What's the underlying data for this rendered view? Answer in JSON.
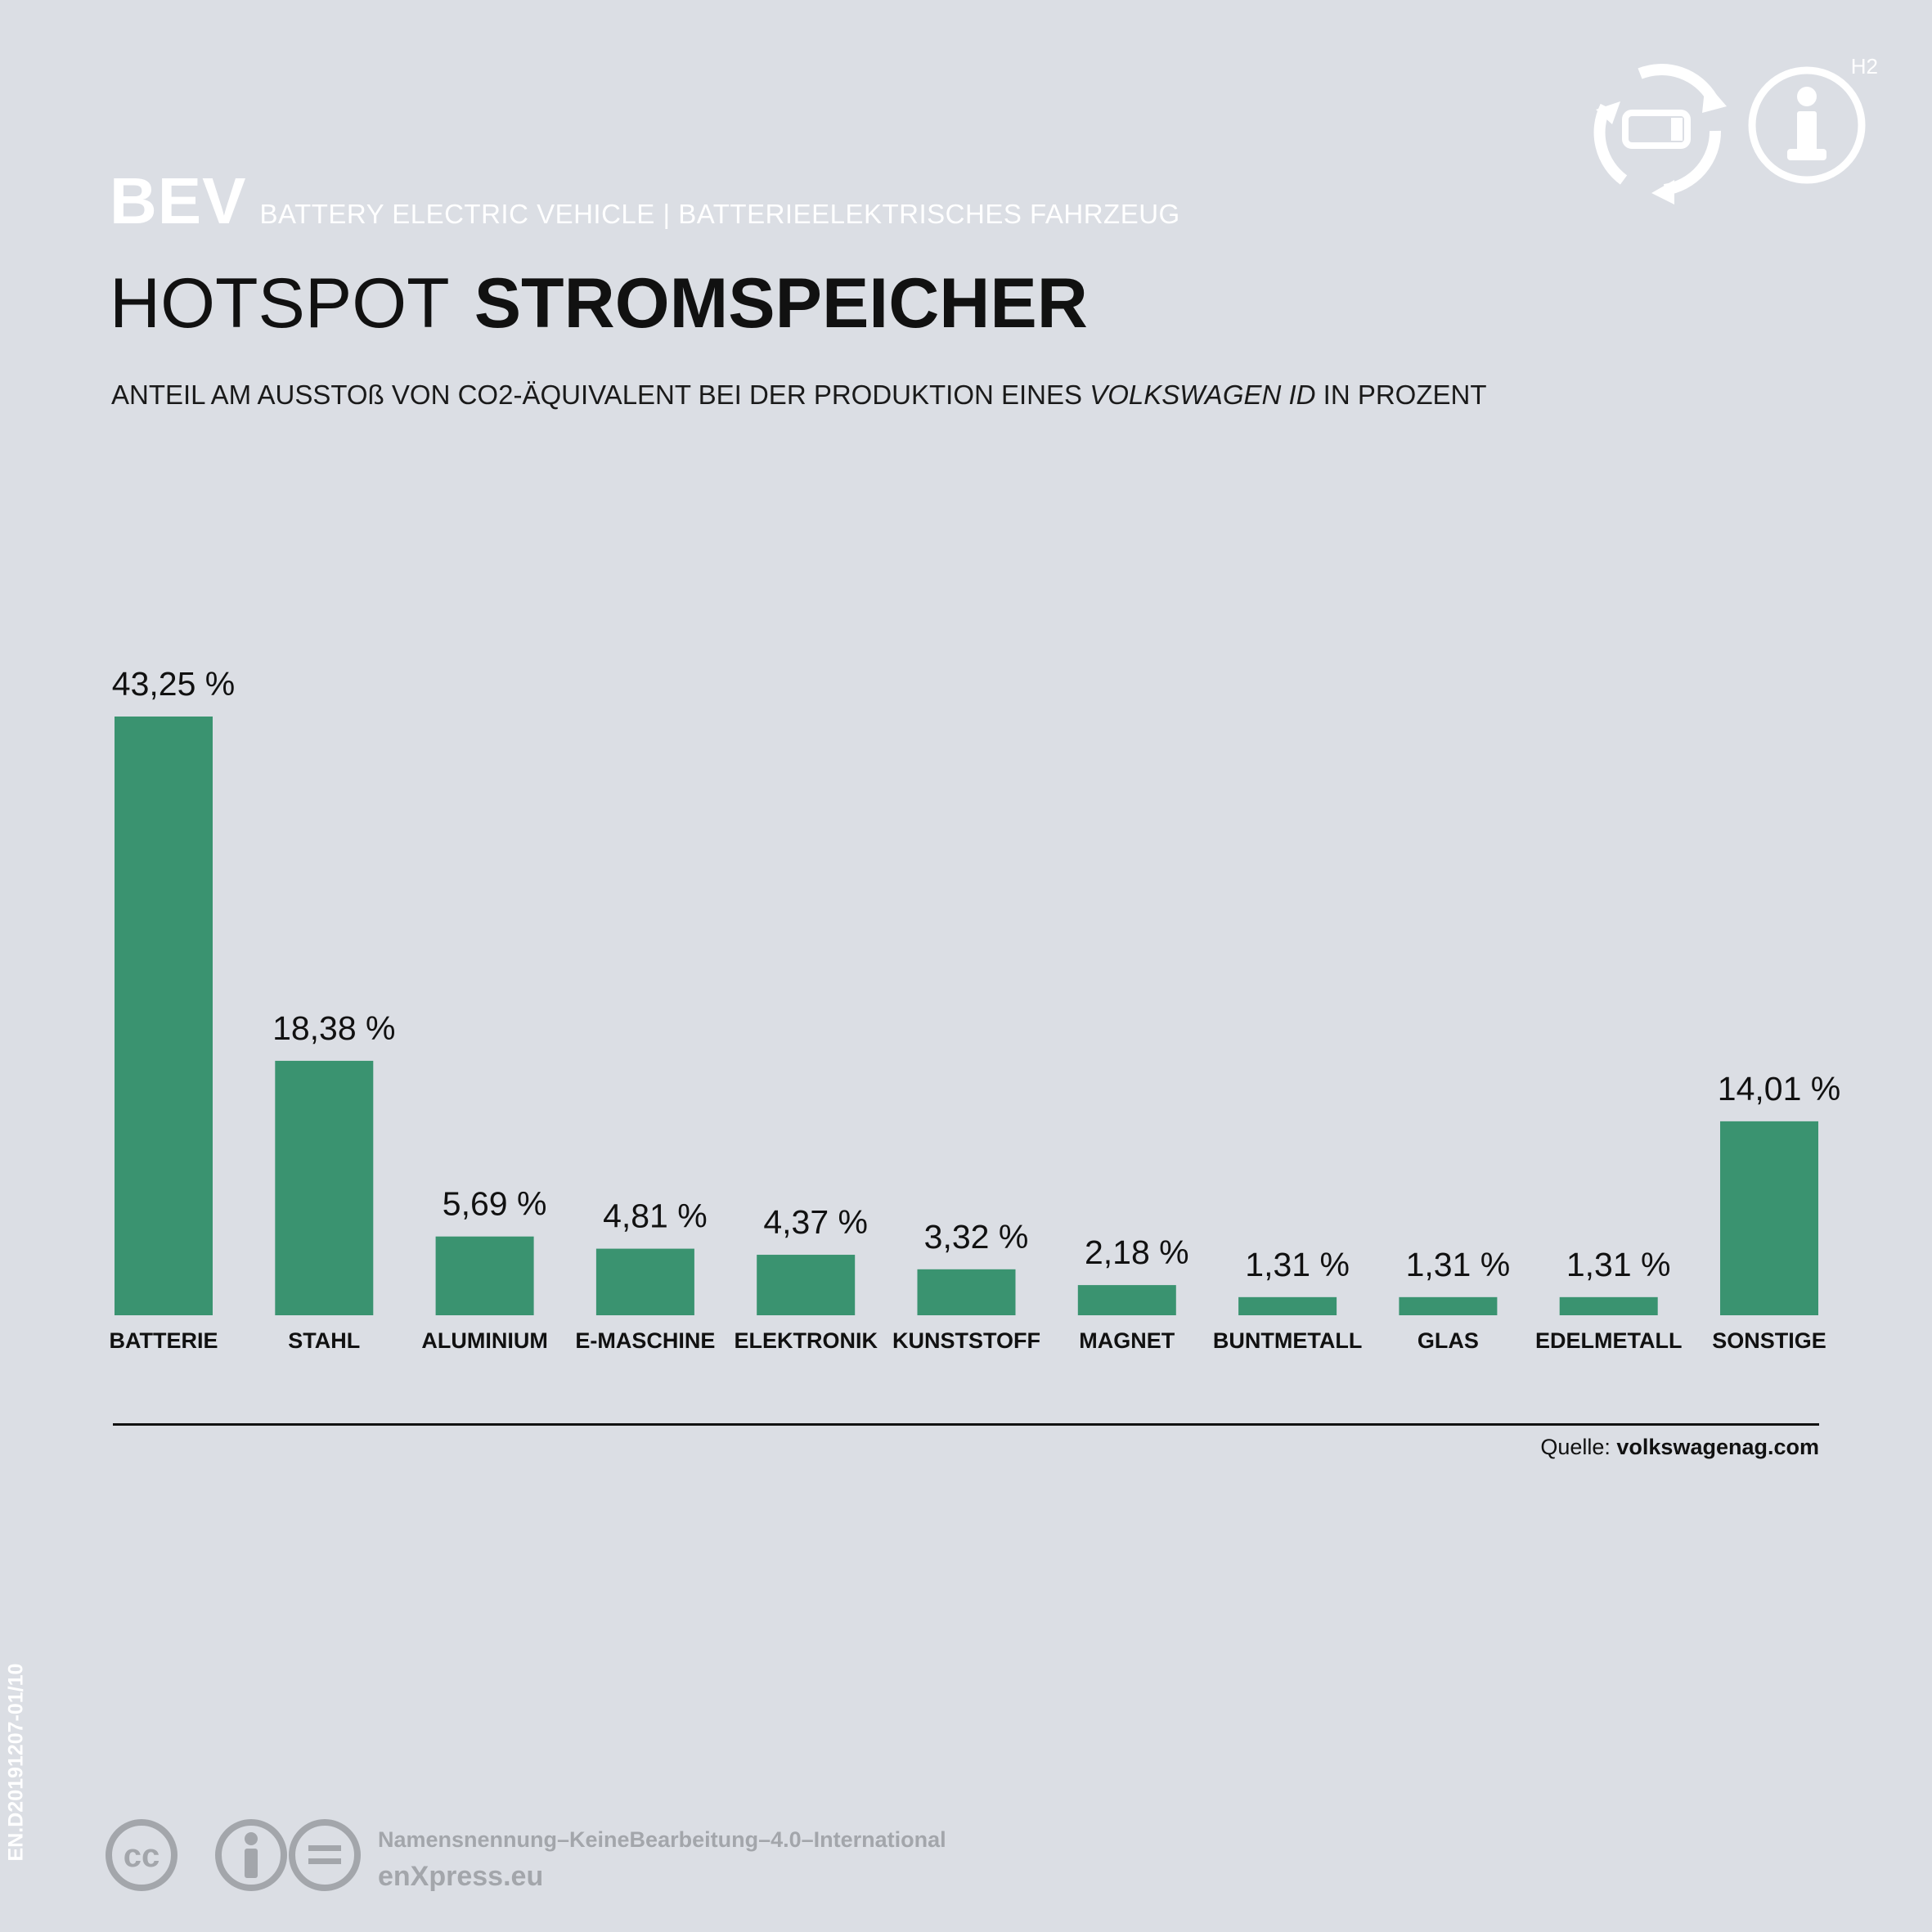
{
  "header": {
    "short": "BEV",
    "long": "BATTERY ELECTRIC VEHICLE  | BATTERIEELEKTRISCHES FAHRZEUG"
  },
  "title": {
    "light": "HOTSPOT",
    "bold": "STROMSPEICHER"
  },
  "subtitle": {
    "before": "ANTEIL AM AUSSTOß VON CO2-ÄQUIVALENT BEI DER PRODUKTION EINES ",
    "italic": "VOLKSWAGEN ID",
    "after": " IN PROZENT"
  },
  "chart_data": {
    "type": "bar",
    "categories": [
      "BATTERIE",
      "STAHL",
      "ALUMINIUM",
      "E-MASCHINE",
      "ELEKTRONIK",
      "KUNSTSTOFF",
      "MAGNET",
      "BUNTMETALL",
      "GLAS",
      "EDELMETALL",
      "SONSTIGE"
    ],
    "values": [
      43.25,
      18.38,
      5.69,
      4.81,
      4.37,
      3.32,
      2.18,
      1.31,
      1.31,
      1.31,
      14.01
    ],
    "value_labels": [
      "43,25 %",
      "18,38 %",
      "5,69 %",
      "4,81 %",
      "4,37 %",
      "3,32 %",
      "2,18 %",
      "1,31 %",
      "1,31 %",
      "1,31 %",
      "14,01 %"
    ],
    "bar_color": "#3a9370",
    "ylim": [
      0,
      43.25
    ],
    "grid": false
  },
  "source": {
    "prefix": "Quelle: ",
    "name": "volkswagenag.com"
  },
  "side_code": "EN.D20191207-01/10",
  "license": {
    "name": "Namensnennung–KeineBearbeitung–4.0–International",
    "site": "enXpress.eu"
  },
  "top_icons": {
    "badge": "H2"
  },
  "colors": {
    "background": "#dbdee4",
    "accent": "#3a9370",
    "muted": "#a3a6ab"
  }
}
